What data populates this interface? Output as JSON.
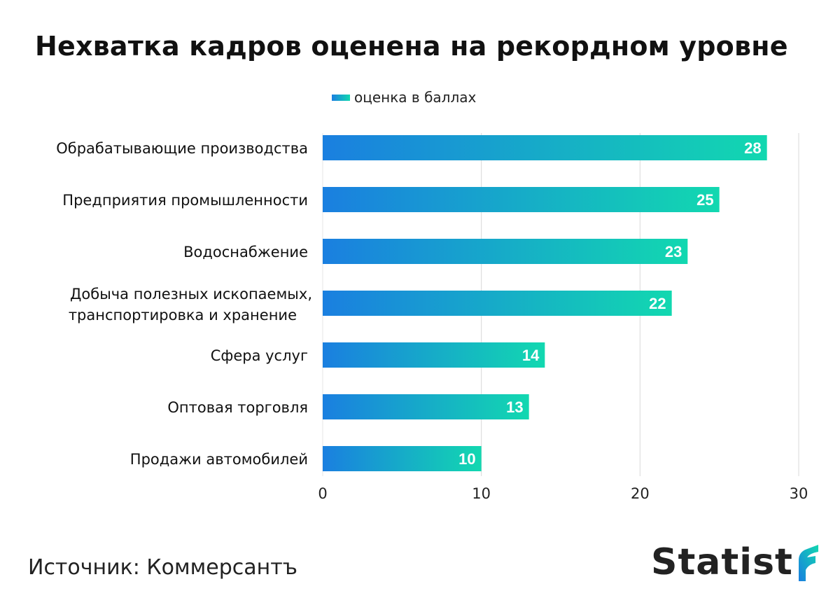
{
  "title": "Нехватка кадров оценена на рекордном уровне",
  "legend": {
    "label": "оценка в баллах"
  },
  "source": "Источник: Коммерсантъ",
  "brand": {
    "name": "Statist",
    "mark_icon": "statista-flag-icon"
  },
  "colors": {
    "bar_start": "#1a7fe0",
    "bar_end": "#12d8b0",
    "grid": "#d9d9d9",
    "value_label": "#ffffff"
  },
  "chart_data": {
    "type": "bar",
    "orientation": "horizontal",
    "categories": [
      "Обрабатывающие производства",
      "Предприятия промышленности",
      "Водоснабжение",
      "Добыча полезных ископаемых, транспортировка и хранение",
      "Сфера услуг",
      "Оптовая торговля",
      "Продажи автомобилей"
    ],
    "category_lines": [
      [
        "Обрабатывающие производства"
      ],
      [
        "Предприятия промышленности"
      ],
      [
        "Водоснабжение"
      ],
      [
        "Добыча полезных ископаемых,",
        "транспортировка и хранение"
      ],
      [
        "Сфера услуг"
      ],
      [
        "Оптовая торговля"
      ],
      [
        "Продажи автомобилей"
      ]
    ],
    "series": [
      {
        "name": "оценка в баллах",
        "values": [
          28,
          25,
          23,
          22,
          14,
          13,
          10
        ]
      }
    ],
    "xlim": [
      0,
      30
    ],
    "xticks": [
      0,
      10,
      20,
      30
    ],
    "grid": true,
    "legend_position": "top"
  }
}
